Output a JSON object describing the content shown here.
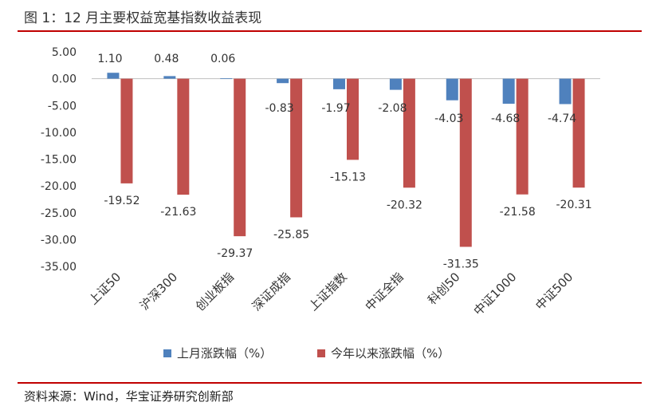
{
  "header": {
    "title": "图 1：12 月主要权益宽基指数收益表现"
  },
  "footer": {
    "source": "资料来源：Wind，华宝证券研究创新部"
  },
  "colors": {
    "series1": "#4f81bd",
    "series2": "#c0504d",
    "rule": "#c00000"
  },
  "chart_data": {
    "type": "bar",
    "categories": [
      "上证50",
      "沪深300",
      "创业板指",
      "深证成指",
      "上证指数",
      "中证全指",
      "科创50",
      "中证1000",
      "中证500"
    ],
    "series": [
      {
        "name": "上月涨跌幅（%）",
        "values": [
          1.1,
          0.48,
          0.06,
          -0.83,
          -1.97,
          -2.08,
          -4.03,
          -4.68,
          -4.74
        ],
        "labels": [
          "1.10",
          "0.48",
          "0.06",
          "-0.83",
          "-1.97",
          "-2.08",
          "-4.03",
          "-4.68",
          "-4.74"
        ]
      },
      {
        "name": "今年以来涨跌幅（%）",
        "values": [
          -19.52,
          -21.63,
          -29.37,
          -25.85,
          -15.13,
          -20.32,
          -31.35,
          -21.58,
          -20.31
        ],
        "labels": [
          "-19.52",
          "-21.63",
          "-29.37",
          "-25.85",
          "-15.13",
          "-20.32",
          "-31.35",
          "-21.58",
          "-20.31"
        ]
      }
    ],
    "ylim": [
      -35,
      5
    ],
    "yticks": [
      "5.00",
      "0.00",
      "-5.00",
      "-10.00",
      "-15.00",
      "-20.00",
      "-25.00",
      "-30.00",
      "-35.00"
    ],
    "ytick_values": [
      5,
      0,
      -5,
      -10,
      -15,
      -20,
      -25,
      -30,
      -35
    ],
    "grid": false,
    "legend_position": "bottom"
  }
}
